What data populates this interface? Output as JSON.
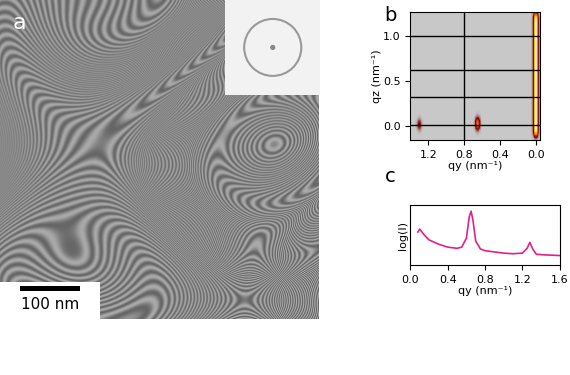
{
  "chart_data": [
    {
      "type": "image",
      "title": "a",
      "scale_bar": "100 nm"
    },
    {
      "type": "heatmap",
      "title": "b",
      "x_label": "qy (nm⁻¹)",
      "y_label": "qz (nm⁻¹)",
      "xlim": [
        1.4,
        -0.05
      ],
      "ylim": [
        -0.15,
        1.27
      ],
      "xticks": [
        1.2,
        0.8,
        0.4,
        0.0
      ],
      "yticks": [
        0.0,
        0.5,
        1.0
      ],
      "rods": [
        {
          "qy": 0.0,
          "qz": [
            -0.1,
            1.25
          ],
          "intensity": 1.0
        },
        {
          "qy": 0.65,
          "qz": [
            -0.02,
            0.08
          ],
          "intensity": 0.75
        },
        {
          "qy": 1.3,
          "qz": [
            -0.02,
            0.06
          ],
          "intensity": 0.35
        }
      ],
      "hlines": [
        0.02,
        0.33,
        0.63,
        1.0
      ],
      "vlines": [
        0.8
      ]
    },
    {
      "type": "line",
      "title": "c",
      "x_label": "qy (nm⁻¹)",
      "y_label": "log(I)",
      "x": [
        0.08,
        0.1,
        0.15,
        0.2,
        0.3,
        0.4,
        0.5,
        0.55,
        0.6,
        0.63,
        0.65,
        0.67,
        0.7,
        0.75,
        0.8,
        0.9,
        1.0,
        1.1,
        1.2,
        1.25,
        1.28,
        1.31,
        1.35,
        1.45,
        1.6
      ],
      "values": [
        0.55,
        0.6,
        0.5,
        0.42,
        0.35,
        0.3,
        0.28,
        0.3,
        0.45,
        0.8,
        0.9,
        0.75,
        0.4,
        0.27,
        0.24,
        0.22,
        0.2,
        0.19,
        0.2,
        0.28,
        0.38,
        0.27,
        0.18,
        0.17,
        0.16
      ],
      "color": "#e0218a",
      "xlim": [
        0.0,
        1.6
      ],
      "ylim": [
        0,
        1
      ],
      "xticks": [
        0.0,
        0.4,
        0.8,
        1.2,
        1.6
      ],
      "tick_labels": "x"
    }
  ]
}
